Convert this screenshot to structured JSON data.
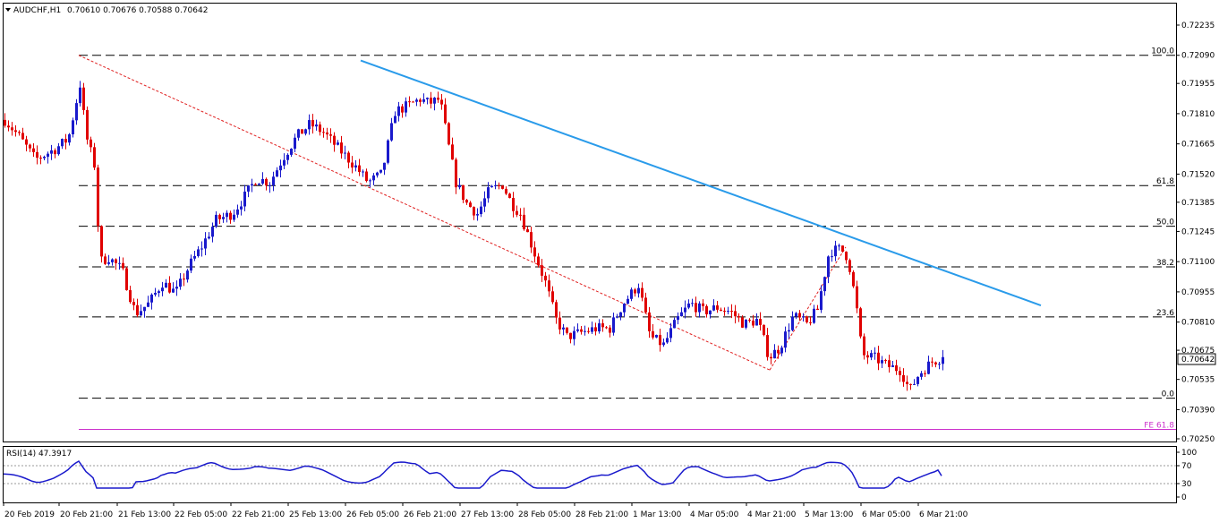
{
  "header": {
    "symbol": "AUDCHF,H1",
    "ohlc": "0.70610 0.70676 0.70588 0.70642"
  },
  "rsi_header": "RSI(14) 47.3917",
  "price_badge": "0.70642",
  "colors": {
    "bull": "#1a1acc",
    "bear": "#e00000",
    "trendline": "#2a9bea",
    "fib_line": "#000000",
    "fe_line": "#cc33cc",
    "dotted_red": "#e02020",
    "rsi_line": "#1a1acc",
    "badge_bg": "#ffffff"
  },
  "chart_data": [
    {
      "type": "candlestick",
      "title": "AUDCHF,H1",
      "ylim": [
        0.70255,
        0.723
      ],
      "y_ticks": [
        "0.72235",
        "0.72090",
        "0.71955",
        "0.71810",
        "0.71665",
        "0.71520",
        "0.71385",
        "0.71245",
        "0.71100",
        "0.70955",
        "0.70810",
        "0.70675",
        "0.70535",
        "0.70390",
        "0.70250"
      ],
      "x_ticks": [
        "20 Feb 2019",
        "20 Feb 21:00",
        "21 Feb 13:00",
        "22 Feb 05:00",
        "22 Feb 21:00",
        "25 Feb 13:00",
        "26 Feb 05:00",
        "26 Feb 21:00",
        "27 Feb 13:00",
        "28 Feb 05:00",
        "28 Feb 21:00",
        "1 Mar 13:00",
        "4 Mar 05:00",
        "4 Mar 21:00",
        "5 Mar 13:00",
        "6 Mar 05:00",
        "6 Mar 21:00"
      ],
      "last_close": 0.70642,
      "fibonacci": {
        "levels": [
          {
            "label": "100.0",
            "value": 0.7209
          },
          {
            "label": "61.8",
            "value": 0.71465
          },
          {
            "label": "50.0",
            "value": 0.7127
          },
          {
            "label": "38.2",
            "value": 0.71075
          },
          {
            "label": "23.6",
            "value": 0.70835
          },
          {
            "label": "0.0",
            "value": 0.70445
          }
        ],
        "extension": {
          "label": "FE 61.8",
          "value": 0.70295
        }
      },
      "trendline": {
        "from_price": 0.72065,
        "to_price": 0.7089
      },
      "dotted_line": {
        "from_price": 0.7209,
        "to_price": 0.7058
      }
    },
    {
      "type": "line",
      "title": "RSI(14) 47.3917",
      "ylim": [
        0,
        100
      ],
      "y_ticks": [
        "100",
        "70",
        "30",
        "0"
      ],
      "levels": [
        70,
        30
      ],
      "last_value": 47.3917
    }
  ]
}
